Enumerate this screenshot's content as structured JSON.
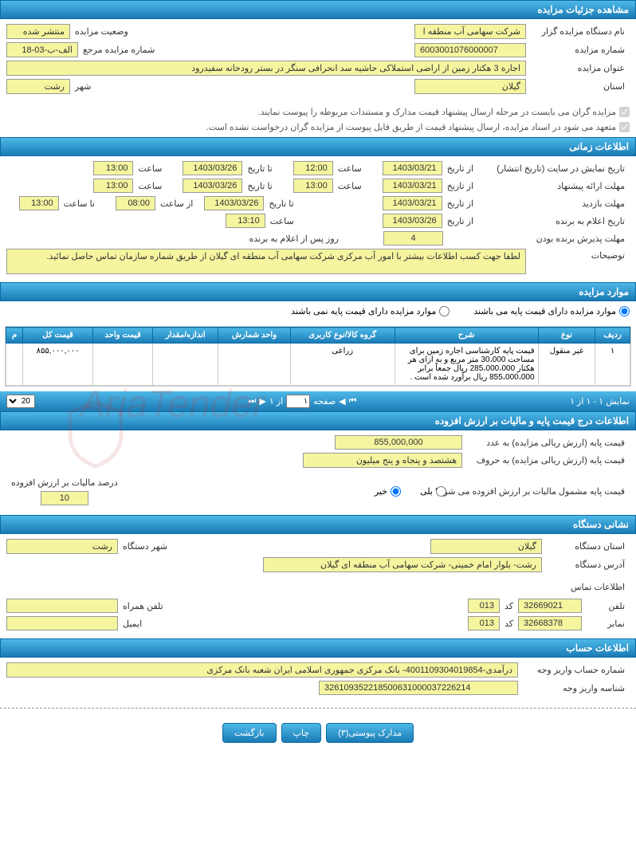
{
  "colors": {
    "header_gradient_top": "#4db8e8",
    "header_gradient_bottom": "#1a7bb5",
    "header_border": "#0d6aa3",
    "field_bg": "#f5f5a0",
    "field_border": "#999999",
    "text": "#333333",
    "muted_text": "#555555",
    "watermark": "rgba(200,50,50,0.15)"
  },
  "section_details": {
    "header": "مشاهده جزئیات مزایده",
    "organizer_label": "نام دستگاه مزایده گزار",
    "organizer": "شرکت سهامی آب منطقه ا",
    "status_label": "وضعیت مزایده",
    "status": "منتشر شده",
    "auction_no_label": "شماره مزایده",
    "auction_no": "6003001076000007",
    "ref_no_label": "شماره مزایده مرجع",
    "ref_no": "الف-ب-03-18",
    "title_label": "عنوان مزایده",
    "title": "اجاره 3 هکتار زمین از اراضی استملاکی حاشیه سد انحرافی سنگر در بستر رودخانه سفیدرود",
    "province_label": "استان",
    "province": "گیلان",
    "city_label": "شهر",
    "city": "رشت"
  },
  "notes": {
    "note1_checked": true,
    "note1": "مزایده گران می بایست در مرحله ارسال پیشنهاد قیمت مدارک و مستندات مربوطه را پیوست نمایند.",
    "note2_checked": true,
    "note2": "متعهد می شود در اسناد مزایده، ارسال پیشنهاد قیمت از طریق فایل پیوست از مزایده گران درخواست نشده است."
  },
  "section_time": {
    "header": "اطلاعات زمانی",
    "display_label": "تاریخ نمایش در سایت (تاریخ انتشار)",
    "from_date_label": "از تاریخ",
    "to_date_label": "تا تاریخ",
    "time_label": "ساعت",
    "from_time_label": "از ساعت",
    "to_time_label": "تا ساعت",
    "display_from_date": "1403/03/21",
    "display_from_time": "12:00",
    "display_to_date": "1403/03/26",
    "display_to_time": "13:00",
    "proposal_label": "مهلت ارائه پیشنهاد",
    "proposal_from_date": "1403/03/21",
    "proposal_from_time": "13:00",
    "proposal_to_date": "1403/03/26",
    "proposal_to_time": "13:00",
    "visit_label": "مهلت بازدید",
    "visit_from_date": "1403/03/21",
    "visit_from_time": "08:00",
    "visit_to_date": "1403/03/26",
    "visit_to_time": "13:00",
    "announce_label": "تاریخ اعلام به برنده",
    "announce_date": "1403/03/26",
    "announce_time": "13:10",
    "accept_label": "مهلت پذیرش برنده بودن",
    "accept_days": "4",
    "accept_days_label": "روز پس از اعلام به برنده",
    "desc_label": "توضیحات",
    "desc": "لطفا جهت کسب اطلاعات بیشتر با امور آب مرکزی شرکت سهامی آب منطقه ای گیلان از طریق شماره سازمان تماس حاصل نمائید."
  },
  "section_items": {
    "header": "موارد مزایده",
    "radio1": "موارد مزایده دارای قیمت پایه می باشند",
    "radio2": "موارد مزایده دارای قیمت پایه نمی باشند",
    "radio1_checked": true,
    "table": {
      "columns": [
        "ردیف",
        "نوع",
        "شرح",
        "گروه کالا/نوع کاربری",
        "واحد شمارش",
        "اندازه/مقدار",
        "قیمت واحد",
        "قیمت کل",
        "م"
      ],
      "rows": [
        [
          "۱",
          "غیر منقول",
          "قیمت پایه کارشناسی اجاره زمین برای مساحت 30،000 متر مربع و به ازای هر هکتار 285،000،000 ریال جمعاً برابر 855،000،000 ریال برآورد شده است .",
          "زراعی",
          "",
          "",
          "",
          "۸۵۵,۰۰۰,۰۰۰",
          ""
        ]
      ]
    },
    "pager": {
      "info": "نمایش ۱ - ۱ از ۱",
      "page_label": "صفحه",
      "page_value": "۱",
      "of_label": "از ۱",
      "per_page": "20"
    }
  },
  "section_price": {
    "header": "اطلاعات درج قیمت پایه و مالیات بر ارزش افزوده",
    "base_num_label": "قیمت پایه (ارزش ریالی مزایده) به عدد",
    "base_num": "855,000,000",
    "base_text_label": "قیمت پایه (ارزش ریالی مزایده) به حروف",
    "base_text": "هشتصد و پنجاه و پنج میلیون",
    "vat_q_label": "قیمت پایه مشمول مالیات بر ارزش افزوده می شود؟",
    "vat_yes": "بلی",
    "vat_no": "خیر",
    "vat_no_checked": true,
    "vat_pct_label": "درصد مالیات بر ارزش افزوده",
    "vat_pct": "10"
  },
  "section_org": {
    "header": "نشانی دستگاه",
    "province_label": "استان دستگاه",
    "province": "گیلان",
    "city_label": "شهر دستگاه",
    "city": "رشت",
    "address_label": "آدرس دستگاه",
    "address": "رشت- بلوار امام خمینی- شرکت سهامی آب منطقه ای گیلان",
    "contact_header": "اطلاعات تماس",
    "phone_label": "تلفن",
    "phone": "32669021",
    "code_label": "کد",
    "phone_code": "013",
    "mobile_label": "تلفن همراه",
    "mobile": "",
    "fax_label": "نمابر",
    "fax": "32668378",
    "fax_code": "013",
    "email_label": "ایمیل",
    "email": ""
  },
  "section_account": {
    "header": "اطلاعات حساب",
    "account_label": "شماره حساب واریز وجه",
    "account": "درآمدی-4001109304019854- بانک مرکزی جمهوری اسلامی ایران شعبه بانک مرکزی",
    "id_label": "شناسه واریز وجه",
    "id": "326109352218500631000037226214"
  },
  "buttons": {
    "attachments": "مدارک پیوستی(۳)",
    "print": "چاپ",
    "back": "بازگشت"
  },
  "watermark_text": "AriaTender"
}
